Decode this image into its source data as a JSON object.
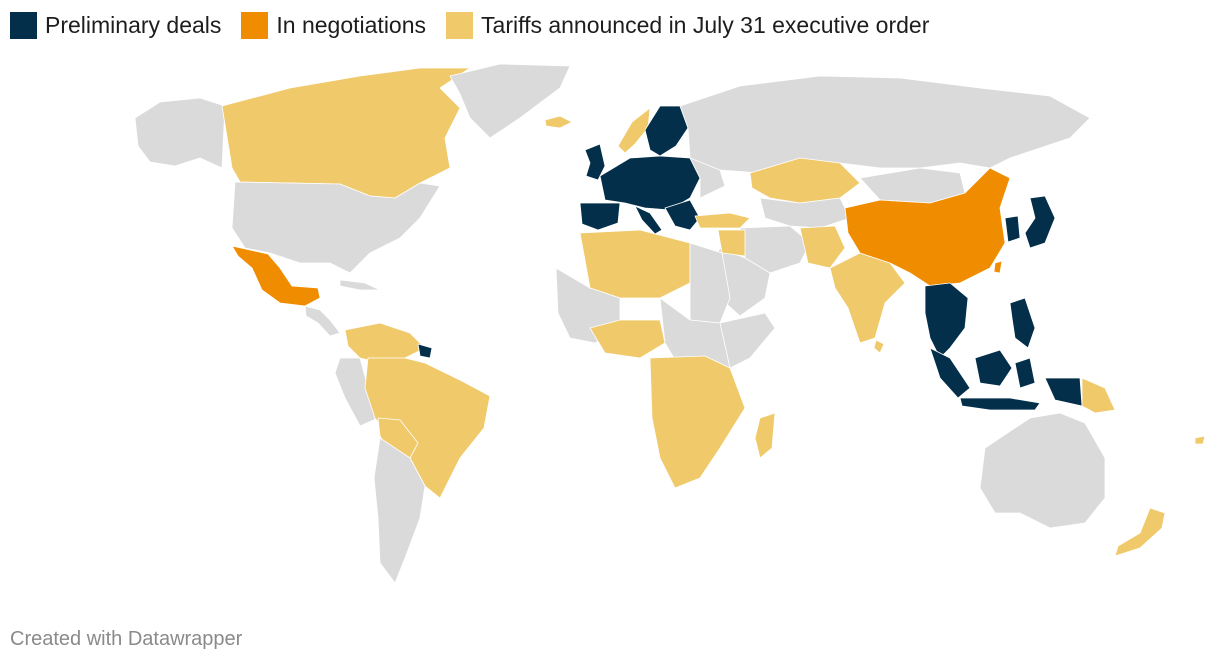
{
  "legend": {
    "items": [
      {
        "label": "Preliminary deals",
        "color": "#032f4a"
      },
      {
        "label": "In negotiations",
        "color": "#f08c00"
      },
      {
        "label": "Tariffs announced in July 31 executive order",
        "color": "#f0c96a"
      }
    ]
  },
  "map": {
    "colors": {
      "no_data": "#dadada",
      "preliminary": "#032f4a",
      "negotiations": "#f08c00",
      "tariffs": "#f0c96a"
    }
  },
  "footer": {
    "credit": "Created with Datawrapper"
  }
}
